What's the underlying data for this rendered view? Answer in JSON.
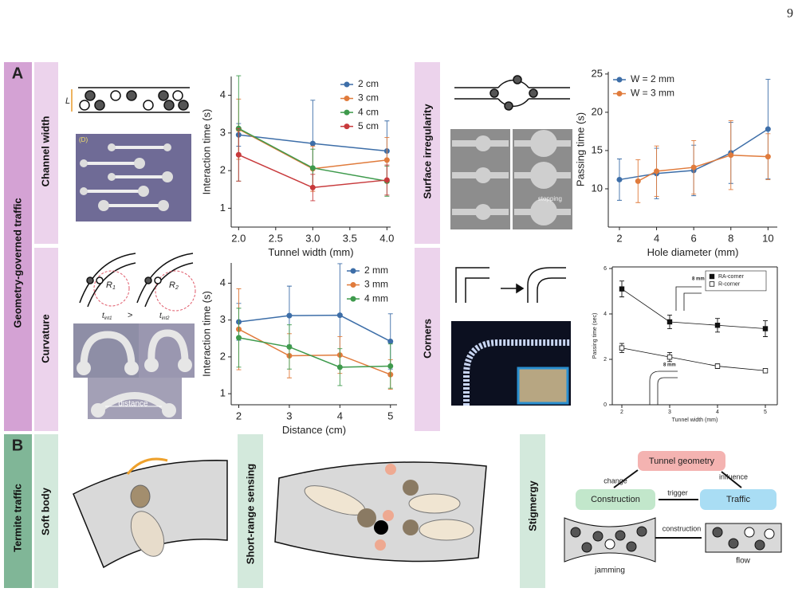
{
  "page_number": "9",
  "panel_a": {
    "label": "A",
    "title": "Geometry-governed traffic",
    "rows": [
      "Channel width",
      "Curvature",
      "Surface irregularity",
      "Corners"
    ]
  },
  "panel_b": {
    "label": "B",
    "title": "Termite traffic",
    "rows": [
      "Soft body",
      "Short-range sensing",
      "Stigmergy"
    ]
  },
  "diagram_text": {
    "channel_length": "L",
    "photo_tag": "(D)",
    "radius_1": "R",
    "radius_1_sub": "1",
    "radius_2": "R",
    "radius_2_sub": "2",
    "time_1": "t",
    "time_1_sub": "int1",
    "compare": ">",
    "time_2": "t",
    "time_2_sub": "int2",
    "distance": "distance",
    "stopping": "stopping",
    "inset_length": [
      "8 mm",
      "8 mm"
    ],
    "tunnel_geometry": "Tunnel geometry",
    "change": "change",
    "influence": "influence",
    "construction_box": "Construction",
    "trigger": "trigger",
    "traffic_box": "Traffic",
    "construction_arrow": "construction",
    "jamming": "jamming",
    "flow": "flow"
  },
  "chart_data": [
    {
      "type": "line",
      "xlabel": "Tunnel width (mm)",
      "ylabel": "Interaction time (s)",
      "x": [
        2,
        3,
        4
      ],
      "xlim": [
        1.9,
        4.05
      ],
      "ylim": [
        0.5,
        4.5
      ],
      "xticks": [
        {
          "value": 2,
          "label": "2.0"
        },
        {
          "value": 2.5,
          "label": "2.5"
        },
        {
          "value": 3,
          "label": "3.0"
        },
        {
          "value": 3.5,
          "label": "3.5"
        },
        {
          "value": 4,
          "label": "4.0"
        }
      ],
      "yticks": [
        1,
        2,
        3,
        4
      ],
      "legend": "upper right",
      "box": false,
      "series": [
        {
          "name": "2 cm",
          "color": "#3d6ea8",
          "marker": "circle",
          "values": [
            2.95,
            2.72,
            2.52
          ],
          "errors": [
            0.3,
            1.15,
            0.8
          ]
        },
        {
          "name": "3 cm",
          "color": "#e07b3c",
          "marker": "circle",
          "values": [
            3.1,
            2.05,
            2.28
          ],
          "errors": [
            0.8,
            0.6,
            0.6
          ]
        },
        {
          "name": "4 cm",
          "color": "#3e9a4c",
          "marker": "circle",
          "values": [
            3.12,
            2.07,
            1.72
          ],
          "errors": [
            1.4,
            0.5,
            0.4
          ]
        },
        {
          "name": "5 cm",
          "color": "#c83a3c",
          "marker": "circle",
          "values": [
            2.42,
            1.55,
            1.75
          ],
          "errors": [
            0.7,
            0.35,
            0.4
          ]
        }
      ]
    },
    {
      "type": "line",
      "xlabel": "Distance (cm)",
      "ylabel": "Interaction time (s)",
      "x": [
        2,
        3,
        4,
        5
      ],
      "xlim": [
        1.85,
        5.13
      ],
      "ylim": [
        0.7,
        4.55
      ],
      "xticks": [
        2,
        3,
        4,
        5
      ],
      "yticks": [
        1,
        2,
        3,
        4
      ],
      "legend": "upper right",
      "box": false,
      "series": [
        {
          "name": "2 mm",
          "color": "#3d6ea8",
          "marker": "circle",
          "values": [
            2.95,
            3.12,
            3.13,
            2.42
          ],
          "errors": [
            0.5,
            0.8,
            1.4,
            0.75
          ]
        },
        {
          "name": "3 mm",
          "color": "#e07b3c",
          "marker": "circle",
          "values": [
            2.75,
            2.03,
            2.05,
            1.52
          ],
          "errors": [
            1.1,
            0.6,
            0.5,
            0.4
          ]
        },
        {
          "name": "4 mm",
          "color": "#3e9a4c",
          "marker": "circle",
          "values": [
            2.52,
            2.27,
            1.72,
            1.75
          ],
          "errors": [
            0.8,
            0.6,
            0.5,
            0.6
          ]
        }
      ]
    },
    {
      "type": "line",
      "xlabel": "Hole diameter (mm)",
      "ylabel": "Passing time (s)",
      "xlim": [
        1.4,
        10.5
      ],
      "ylim": [
        5,
        25.3
      ],
      "xticks": [
        2,
        4,
        6,
        8,
        10
      ],
      "yticks": [
        10,
        15,
        20,
        25
      ],
      "legend": "upper left",
      "box": false,
      "series": [
        {
          "name": "W = 2 mm",
          "color": "#3d6ea8",
          "marker": "circle",
          "x": [
            2,
            4,
            6,
            8,
            10
          ],
          "values": [
            11.2,
            12.0,
            12.4,
            14.7,
            17.8
          ],
          "errors": [
            2.7,
            3.3,
            3.3,
            4,
            6.5
          ]
        },
        {
          "name": "W = 3 mm",
          "color": "#e07b3c",
          "marker": "circle",
          "x": [
            3,
            4,
            6,
            8,
            10
          ],
          "values": [
            11.0,
            12.3,
            12.8,
            14.4,
            14.2
          ],
          "errors": [
            2.8,
            3.3,
            3.5,
            4.5,
            3
          ]
        }
      ]
    },
    {
      "type": "line",
      "xlabel": "Tunnel width (mm)",
      "ylabel": "Passing time (sec)",
      "x": [
        2,
        3,
        4,
        5
      ],
      "xlim": [
        1.8,
        5.25
      ],
      "ylim": [
        0,
        6.07
      ],
      "xticks": [
        2,
        3,
        4,
        5
      ],
      "yticks": [
        0,
        2,
        4,
        6
      ],
      "legend": "upper right",
      "box": true,
      "series": [
        {
          "name": "RA-corner",
          "color": "#111111",
          "marker": "square",
          "values": [
            5.1,
            3.65,
            3.5,
            3.35
          ],
          "errors": [
            0.35,
            0.3,
            0.3,
            0.35
          ]
        },
        {
          "name": "R-corner",
          "color": "#111111",
          "marker": "square-open",
          "values": [
            2.5,
            2.1,
            1.7,
            1.5
          ],
          "errors": [
            0.2,
            0.2,
            0.1,
            0.1
          ]
        }
      ]
    }
  ]
}
